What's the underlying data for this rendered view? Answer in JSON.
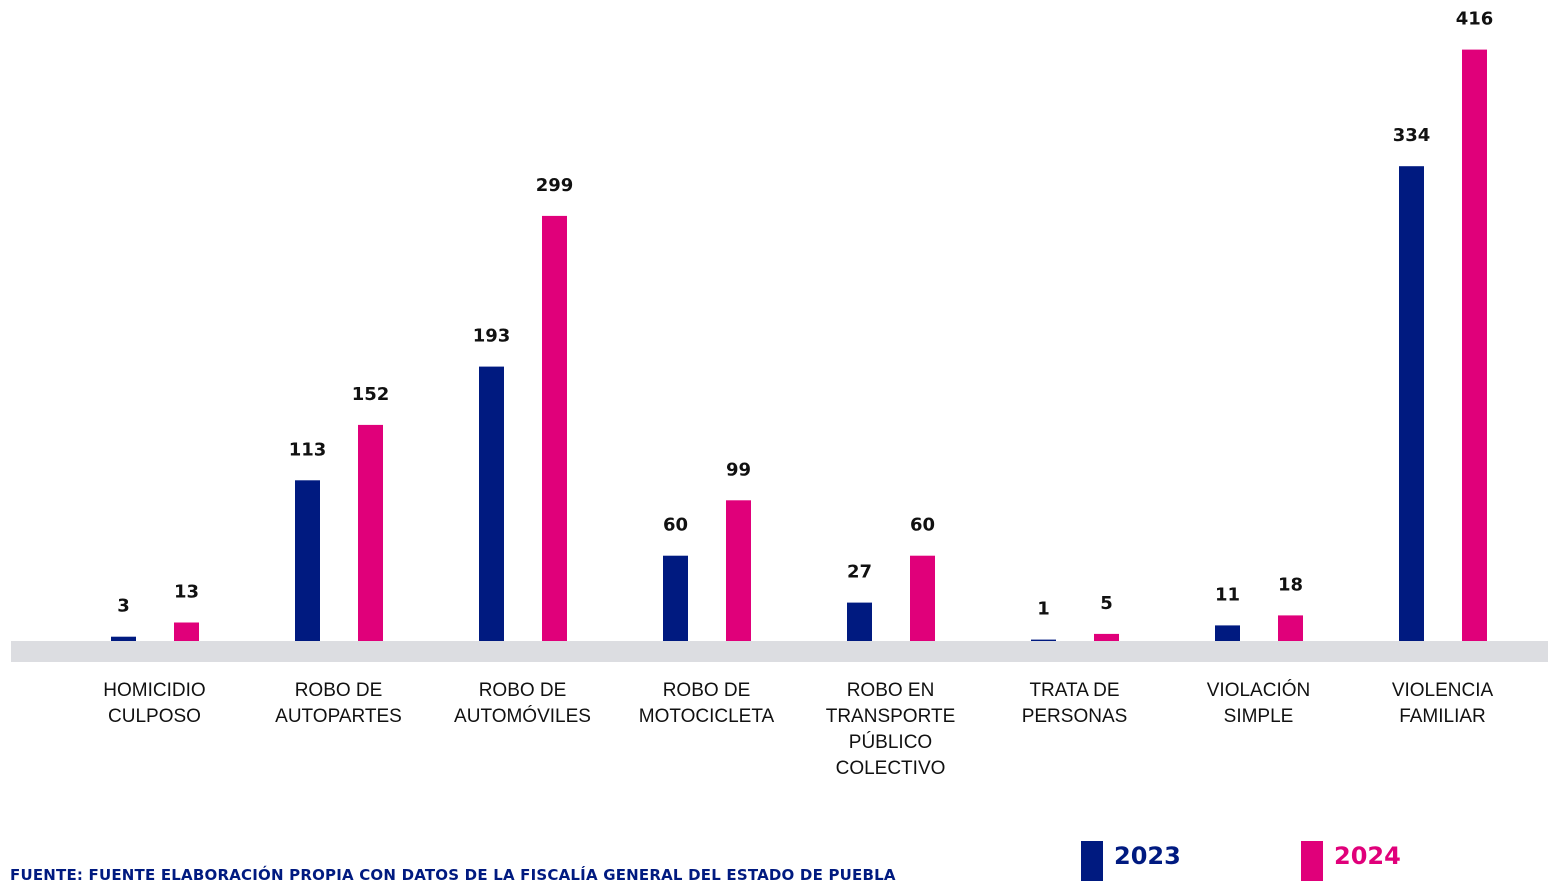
{
  "chart_data": {
    "type": "bar",
    "categories": [
      [
        "HOMICIDIO",
        "CULPOSO"
      ],
      [
        "ROBO DE",
        "AUTOPARTES"
      ],
      [
        "ROBO DE",
        "AUTOMÓVILES"
      ],
      [
        "ROBO DE",
        "MOTOCICLETA"
      ],
      [
        "ROBO EN",
        "TRANSPORTE",
        "PÚBLICO",
        "COLECTIVO"
      ],
      [
        "TRATA DE",
        "PERSONAS"
      ],
      [
        "VIOLACIÓN",
        "SIMPLE"
      ],
      [
        "VIOLENCIA",
        "FAMILIAR"
      ]
    ],
    "series": [
      {
        "name": "2023",
        "color": "#001a80",
        "values": [
          3,
          113,
          193,
          60,
          27,
          1,
          11,
          334
        ]
      },
      {
        "name": "2024",
        "color": "#e0007a",
        "values": [
          13,
          152,
          299,
          99,
          60,
          5,
          18,
          416
        ]
      }
    ],
    "legend": {
      "position": "bottom-right"
    },
    "grid": false
  },
  "source": "FUENTE: FUENTE ELABORACIÓN PROPIA CON DATOS DE LA FISCALÍA GENERAL DEL ESTADO DE PUEBLA"
}
